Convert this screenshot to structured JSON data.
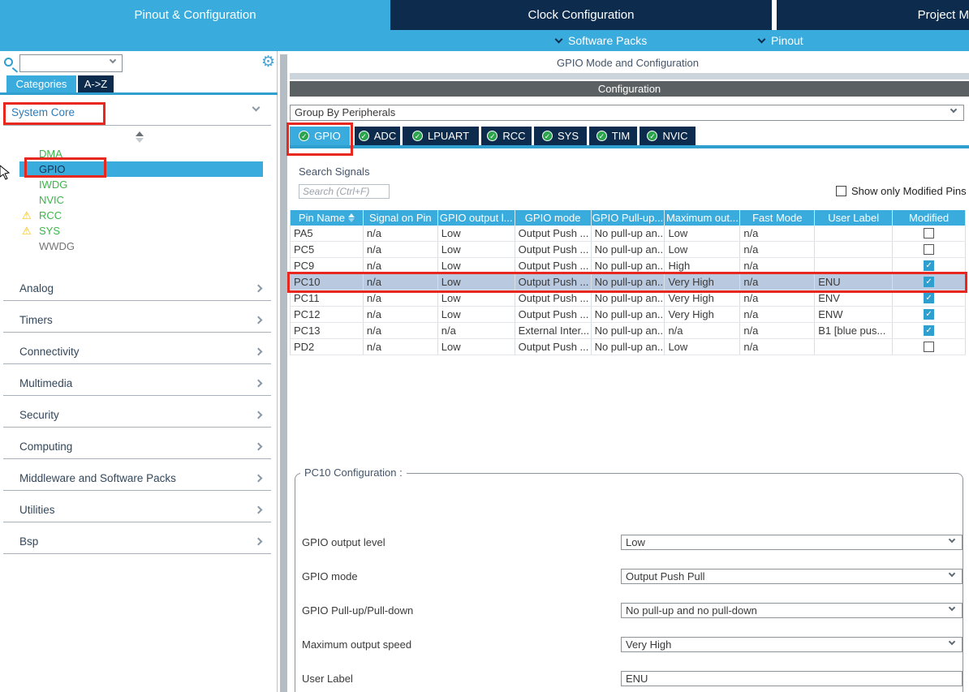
{
  "header": {
    "tabs": [
      {
        "label": "Pinout & Configuration",
        "active": true
      },
      {
        "label": "Clock Configuration",
        "active": false
      },
      {
        "label": "Project M",
        "active": false
      }
    ],
    "sub": [
      {
        "label": "Software Packs"
      },
      {
        "label": "Pinout"
      }
    ]
  },
  "sidebar": {
    "tabs": [
      {
        "label": "Categories",
        "active": true
      },
      {
        "label": "A->Z",
        "active": false
      }
    ],
    "section_title": "System Core",
    "items": [
      {
        "label": "DMA",
        "color": "green"
      },
      {
        "label": "GPIO",
        "selected": true
      },
      {
        "label": "IWDG",
        "color": "green"
      },
      {
        "label": "NVIC",
        "color": "green"
      },
      {
        "label": "RCC",
        "color": "green",
        "warning": true
      },
      {
        "label": "SYS",
        "color": "green",
        "warning": true
      },
      {
        "label": "WWDG",
        "color": "gray"
      }
    ],
    "categories": [
      "Analog",
      "Timers",
      "Connectivity",
      "Multimedia",
      "Security",
      "Computing",
      "Middleware and Software Packs",
      "Utilities",
      "Bsp"
    ]
  },
  "main": {
    "title": "GPIO Mode and Configuration",
    "config_header": "Configuration",
    "group_by": "Group By Peripherals",
    "peripheral_tabs": [
      {
        "label": "GPIO",
        "active": true
      },
      {
        "label": "ADC",
        "active": false
      },
      {
        "label": "LPUART",
        "active": false
      },
      {
        "label": "RCC",
        "active": false
      },
      {
        "label": "SYS",
        "active": false
      },
      {
        "label": "TIM",
        "active": false
      },
      {
        "label": "NVIC",
        "active": false
      }
    ],
    "search_signals_label": "Search Signals",
    "search_placeholder": "Search (Ctrl+F)",
    "show_modified_label": "Show only Modified Pins",
    "table": {
      "columns": [
        "Pin Name",
        "Signal on Pin",
        "GPIO output l...",
        "GPIO mode",
        "GPIO Pull-up...",
        "Maximum out...",
        "Fast Mode",
        "User Label",
        "Modified"
      ],
      "rows": [
        {
          "cells": [
            "PA5",
            "n/a",
            "Low",
            "Output Push ...",
            "No pull-up an...",
            "Low",
            "n/a",
            ""
          ],
          "modified": false,
          "selected": false
        },
        {
          "cells": [
            "PC5",
            "n/a",
            "Low",
            "Output Push ...",
            "No pull-up an...",
            "Low",
            "n/a",
            ""
          ],
          "modified": false,
          "selected": false
        },
        {
          "cells": [
            "PC9",
            "n/a",
            "Low",
            "Output Push ...",
            "No pull-up an...",
            "High",
            "n/a",
            ""
          ],
          "modified": true,
          "selected": false
        },
        {
          "cells": [
            "PC10",
            "n/a",
            "Low",
            "Output Push ...",
            "No pull-up an...",
            "Very High",
            "n/a",
            "ENU"
          ],
          "modified": true,
          "selected": true
        },
        {
          "cells": [
            "PC11",
            "n/a",
            "Low",
            "Output Push ...",
            "No pull-up an...",
            "Very High",
            "n/a",
            "ENV"
          ],
          "modified": true,
          "selected": false
        },
        {
          "cells": [
            "PC12",
            "n/a",
            "Low",
            "Output Push ...",
            "No pull-up an...",
            "Very High",
            "n/a",
            "ENW"
          ],
          "modified": true,
          "selected": false
        },
        {
          "cells": [
            "PC13",
            "n/a",
            "n/a",
            "External Inter...",
            "No pull-up an...",
            "n/a",
            "n/a",
            "B1 [blue pus..."
          ],
          "modified": true,
          "selected": false
        },
        {
          "cells": [
            "PD2",
            "n/a",
            "Low",
            "Output Push ...",
            "No pull-up an...",
            "Low",
            "n/a",
            ""
          ],
          "modified": false,
          "selected": false
        }
      ]
    },
    "pc10_config": {
      "title": "PC10 Configuration :",
      "fields": [
        {
          "label": "GPIO output level",
          "value": "Low",
          "type": "select"
        },
        {
          "label": "GPIO mode",
          "value": "Output Push Pull",
          "type": "select"
        },
        {
          "label": "GPIO Pull-up/Pull-down",
          "value": "No pull-up and no pull-down",
          "type": "select"
        },
        {
          "label": "Maximum output speed",
          "value": "Very High",
          "type": "select"
        },
        {
          "label": "User Label",
          "value": "ENU",
          "type": "text"
        }
      ]
    }
  },
  "icons": {
    "gear_glyph": "⚙",
    "warning_glyph": "⚠",
    "check_glyph": "✓"
  },
  "colors": {
    "accent_blue": "#3aabdd",
    "navy": "#0d2b4d",
    "underline_blue": "#2f9fd0",
    "selection_row": "#b9c9e0",
    "item_green": "#3bb54a",
    "warning_yellow": "#f3bd00",
    "annotation_red": "#e8281e",
    "config_header_gray": "#5b6063",
    "check_green": "#2ca44e"
  }
}
